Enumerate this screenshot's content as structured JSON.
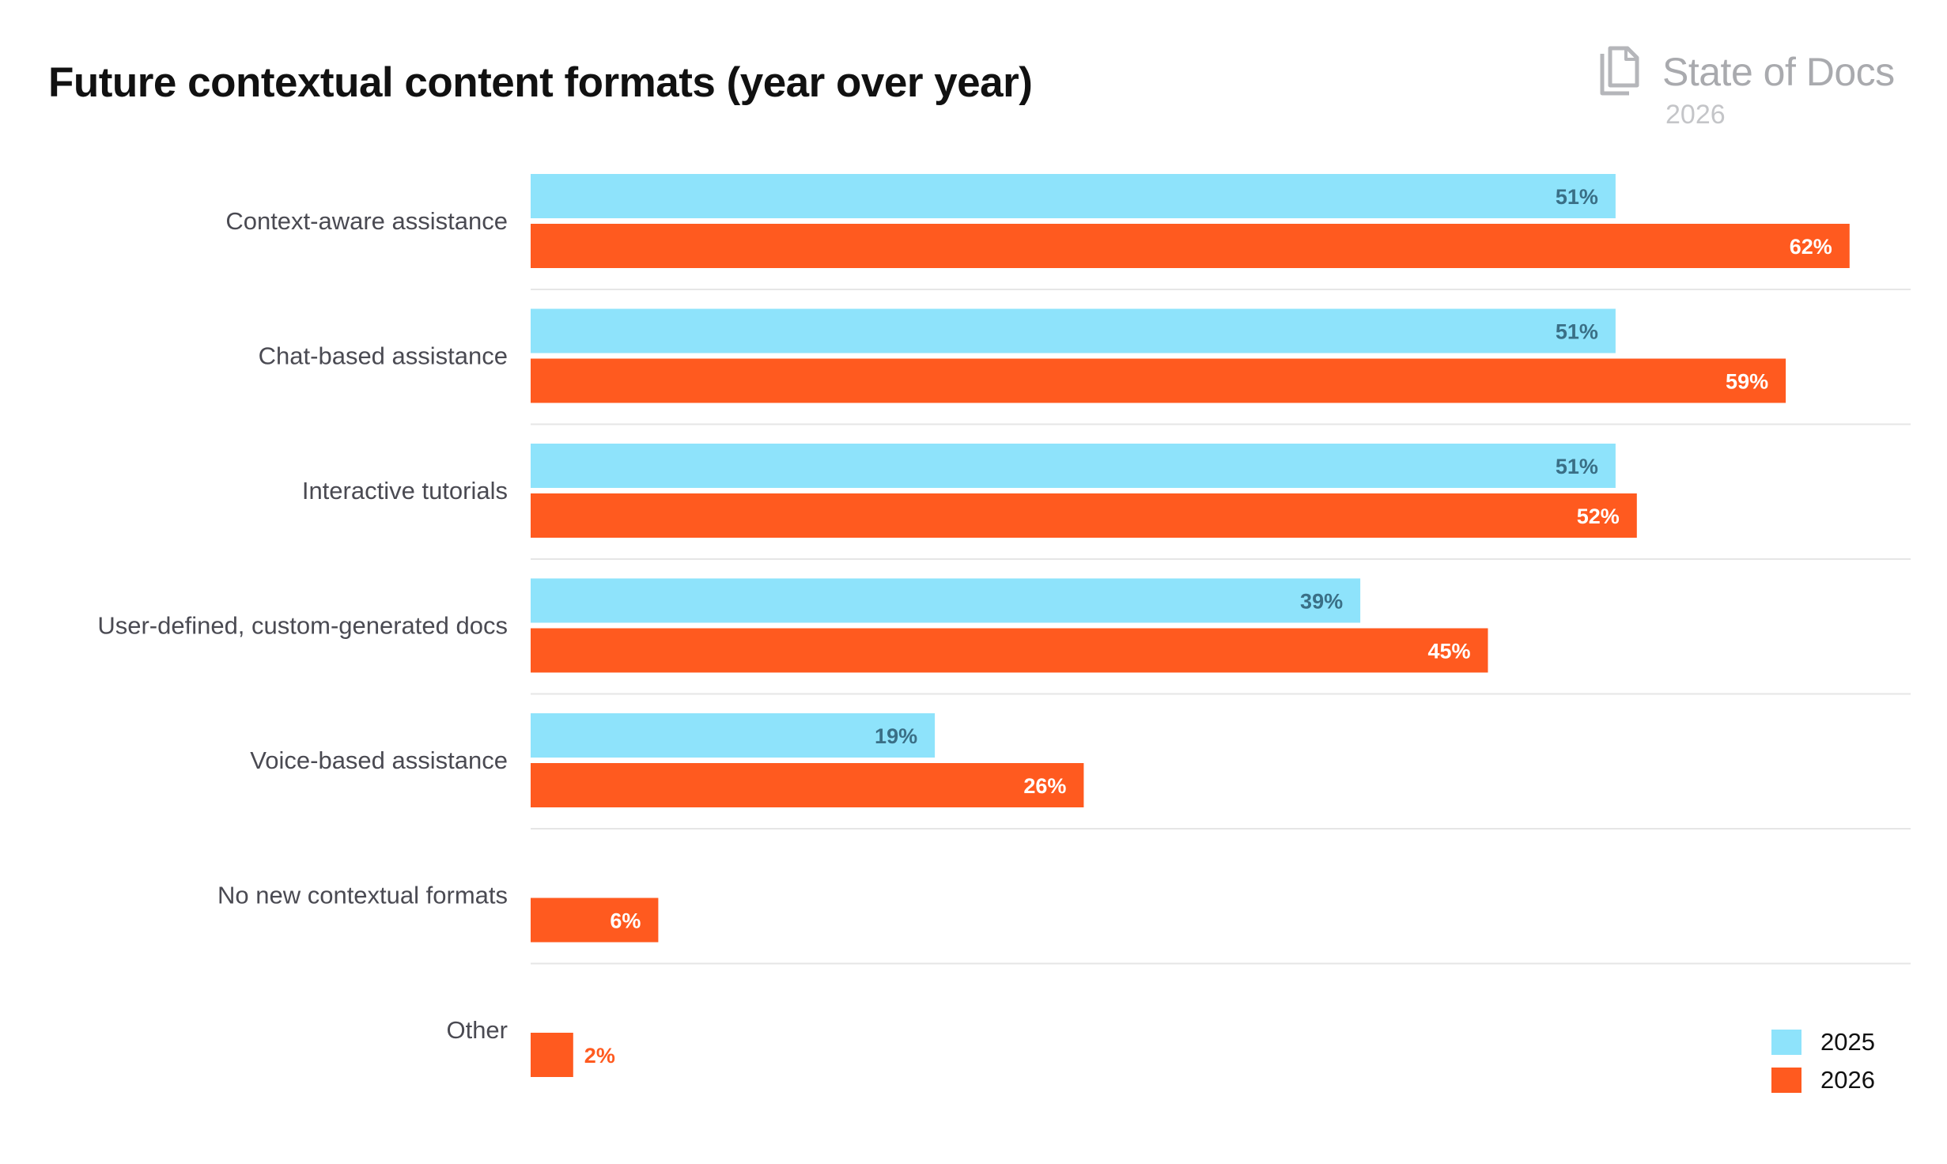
{
  "header": {
    "title": "Future contextual content formats (year over year)"
  },
  "brand": {
    "name": "State of Docs",
    "year": "2026",
    "icon": "document-stack-icon"
  },
  "colors": {
    "series_2025": "#8ee3fb",
    "series_2026": "#ff5a1f",
    "label_on_2025": "#3a6f86",
    "label_on_2026": "#ffffff",
    "label_outside_2026": "#ff5a1f",
    "separator": "#e6e6e6"
  },
  "chart_data": {
    "type": "bar",
    "orientation": "horizontal",
    "title": "Future contextual content formats (year over year)",
    "categories": [
      "Context-aware assistance",
      "Chat-based assistance",
      "Interactive tutorials",
      "User-defined, custom-generated docs",
      "Voice-based assistance",
      "No new contextual formats",
      "Other"
    ],
    "series": [
      {
        "name": "2025",
        "values": [
          51,
          51,
          51,
          39,
          19,
          null,
          null
        ],
        "labels": [
          "51%",
          "51%",
          "51%",
          "39%",
          "19%",
          "",
          ""
        ]
      },
      {
        "name": "2026",
        "values": [
          62,
          59,
          52,
          45,
          26,
          6,
          2
        ],
        "labels": [
          "62%",
          "59%",
          "52%",
          "45%",
          "26%",
          "6%",
          "2%"
        ]
      }
    ],
    "value_unit": "%",
    "legend_position": "bottom-right",
    "grid": false
  }
}
